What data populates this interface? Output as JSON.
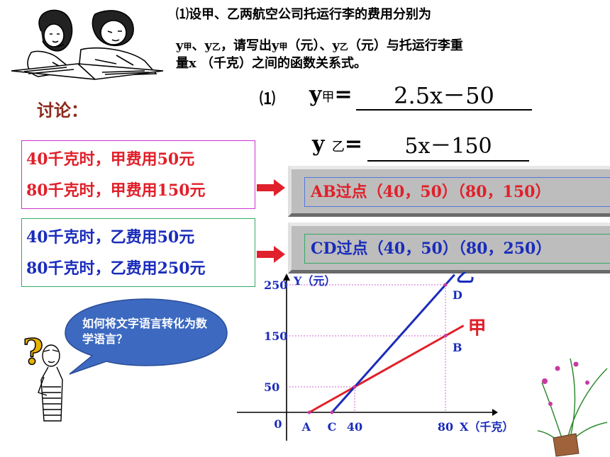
{
  "problem": {
    "line1": "⑴设甲、乙两航空公司托运行李的费用分别为",
    "y_prefix": "y",
    "sub_jia": "甲",
    "mid1": "、y",
    "sub_yi": "乙",
    "mid2": "，请写出y",
    "sub_jia2": "甲",
    "mid3": "（元）、y",
    "sub_yi2": "乙",
    "tail": "（元）与托运行李重",
    "line3": "量x （千克）之间的函数关系式。"
  },
  "discussion_label": "讨论：",
  "equations": {
    "number": "⑴",
    "jia_label": "y",
    "jia_sub": "甲",
    "eq_sign": "=",
    "jia_value": "2.5x－50",
    "yi_label": "y",
    "yi_sub": "乙",
    "yi_value": "5x－150"
  },
  "facts_jia": [
    "40千克时，甲费用50元",
    "80千克时，甲费用150元"
  ],
  "facts_yi": [
    "40千克时，乙费用50元",
    "80千克时，乙费用250元"
  ],
  "points_ab": "AB过点（40，50）（80，150）",
  "points_cd": "CD过点（40，50）（80，250）",
  "question": "如何将文字语言转化为数学语言？",
  "chart_data": {
    "type": "line",
    "ylabel": "Y（元）",
    "xlabel": "X（千克）",
    "y_ticks": [
      "250",
      "150",
      "50"
    ],
    "x_ticks": [
      "40",
      "80"
    ],
    "origin_label": "0",
    "series": [
      {
        "name": "甲",
        "color": "#e0202a",
        "points": [
          [
            20,
            0
          ],
          [
            40,
            50
          ],
          [
            80,
            150
          ],
          [
            88,
            170
          ]
        ],
        "point_labels": [
          "A",
          "",
          "B",
          ""
        ]
      },
      {
        "name": "乙",
        "color": "#1a2cbb",
        "points": [
          [
            30,
            0
          ],
          [
            40,
            50
          ],
          [
            80,
            250
          ],
          [
            84,
            270
          ]
        ],
        "point_labels": [
          "C",
          "",
          "D",
          ""
        ]
      }
    ],
    "intersection": [
      40,
      50
    ]
  },
  "colors": {
    "red": "#e0202a",
    "blue": "#1a2cbb",
    "discussion": "#8b2a1c",
    "bubble": "#3d6ac0"
  }
}
